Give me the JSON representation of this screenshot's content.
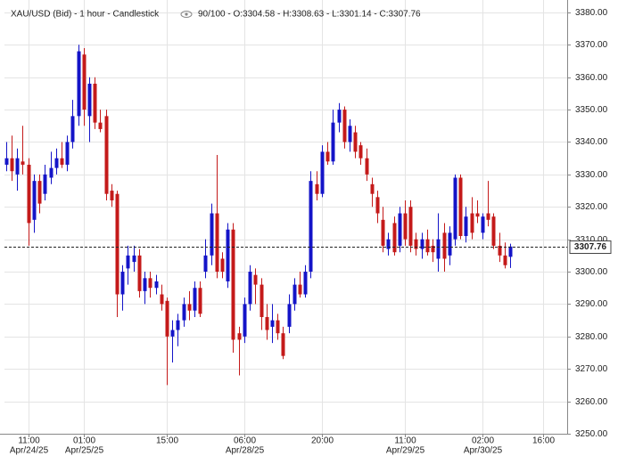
{
  "chart_data": {
    "type": "candlestick",
    "title": "XAU/USD (Bid) - 1 hour - Candlestick",
    "subtitle": "90/100 - O:3304.58 - H:3308.63 - L:3301.14 - C:3307.76",
    "up_color": "#1414c8",
    "down_color": "#c41a1a",
    "open": [
      3333,
      3335,
      3330,
      3334,
      3333,
      3316,
      3328,
      3324,
      3329,
      3332,
      3335,
      3333,
      3340,
      3348,
      3367,
      3348,
      3358,
      3346,
      3348,
      3325,
      3324,
      3293,
      3301,
      3303,
      3305,
      3294,
      3298,
      3295,
      3293,
      3291,
      3280,
      3282,
      3285,
      3290,
      3288,
      3295,
      3300,
      3305,
      3318,
      3304,
      3297,
      3313,
      3281,
      3280,
      3290,
      3299,
      3296,
      3286,
      3283,
      3285,
      3281,
      3283,
      3290,
      3296,
      3293,
      3300,
      3327,
      3324,
      3337,
      3334,
      3346,
      3350,
      3340,
      3343,
      3339,
      3335,
      3327,
      3323,
      3316,
      3307,
      3315,
      3308,
      3318,
      3320,
      3310,
      3307,
      3310,
      3308,
      3304,
      3312,
      3305,
      3310,
      3329,
      3311,
      3318,
      3318,
      3312,
      3318,
      3317,
      3308,
      3305,
      3304.58
    ],
    "high": [
      3340,
      3342,
      3338,
      3345,
      3335,
      3330,
      3330,
      3333,
      3337,
      3338,
      3340,
      3342,
      3353,
      3370,
      3369,
      3360,
      3360,
      3350,
      3350,
      3327,
      3325,
      3302,
      3308,
      3308,
      3307,
      3300,
      3300,
      3299,
      3296,
      3292,
      3285,
      3287,
      3292,
      3294,
      3297,
      3297,
      3310,
      3321,
      3336,
      3306,
      3315,
      3315,
      3283,
      3292,
      3302,
      3301,
      3298,
      3290,
      3290,
      3287,
      3283,
      3293,
      3298,
      3300,
      3302,
      3331,
      3331,
      3339,
      3340,
      3350,
      3352,
      3351,
      3347,
      3345,
      3340,
      3338,
      3329,
      3325,
      3320,
      3312,
      3317,
      3320,
      3322,
      3322,
      3312,
      3312,
      3313,
      3310,
      3318,
      3315,
      3314,
      3330,
      3330,
      3320,
      3323,
      3322,
      3318,
      3328,
      3318,
      3312,
      3309,
      3308.63
    ],
    "low": [
      3331,
      3328,
      3325,
      3330,
      3308,
      3312,
      3318,
      3322,
      3327,
      3330,
      3332,
      3331,
      3338,
      3345,
      3345,
      3340,
      3344,
      3343,
      3322,
      3320,
      3286,
      3288,
      3296,
      3300,
      3292,
      3290,
      3292,
      3293,
      3288,
      3265,
      3272,
      3277,
      3283,
      3285,
      3286,
      3286,
      3298,
      3302,
      3298,
      3298,
      3295,
      3275,
      3268,
      3278,
      3288,
      3290,
      3282,
      3279,
      3278,
      3279,
      3273,
      3281,
      3288,
      3292,
      3292,
      3298,
      3322,
      3323,
      3333,
      3333,
      3343,
      3338,
      3337,
      3335,
      3333,
      3328,
      3320,
      3315,
      3306,
      3305,
      3305,
      3306,
      3308,
      3306,
      3305,
      3304,
      3305,
      3303,
      3300,
      3300,
      3302,
      3308,
      3310,
      3309,
      3310,
      3315,
      3310,
      3314,
      3307,
      3303,
      3301,
      3301.14
    ],
    "close": [
      3335,
      3331,
      3335,
      3333,
      3315,
      3328,
      3321,
      3330,
      3332,
      3335,
      3333,
      3340,
      3348,
      3368,
      3350,
      3358,
      3346,
      3344,
      3324,
      3322,
      3293,
      3300,
      3305,
      3305,
      3294,
      3298,
      3295,
      3297,
      3290,
      3280,
      3282,
      3285,
      3290,
      3288,
      3295,
      3287,
      3305,
      3318,
      3300,
      3300,
      3313,
      3279,
      3279,
      3290,
      3300,
      3296,
      3286,
      3282,
      3285,
      3281,
      3274,
      3290,
      3296,
      3293,
      3300,
      3328,
      3324,
      3337,
      3334,
      3346,
      3350,
      3340,
      3345,
      3337,
      3335,
      3330,
      3324,
      3318,
      3308,
      3310,
      3306,
      3318,
      3310,
      3308,
      3307,
      3310,
      3306,
      3306,
      3310,
      3304,
      3312,
      3329,
      3311,
      3317,
      3312,
      3317,
      3317,
      3316,
      3308,
      3305,
      3302,
      3307.76
    ],
    "xlim": [
      -0.3,
      101.3
    ],
    "xticks": [
      {
        "value": 4,
        "label": "11:00",
        "date": "Apr/24/25"
      },
      {
        "value": 14,
        "label": "01:00",
        "date": "Apr/25/25"
      },
      {
        "value": 29,
        "label": "15:00"
      },
      {
        "value": 43,
        "label": "06:00",
        "date": "Apr/28/25"
      },
      {
        "value": 57,
        "label": "20:00"
      },
      {
        "value": 72,
        "label": "11:00",
        "date": "Apr/29/25"
      },
      {
        "value": 86,
        "label": "02:00",
        "date": "Apr/30/25"
      },
      {
        "value": 97,
        "label": "16:00"
      }
    ],
    "ylim": [
      3250,
      3382
    ],
    "yticks": [
      {
        "value": 3250,
        "label": "3250.00"
      },
      {
        "value": 3260,
        "label": "3260.00"
      },
      {
        "value": 3270,
        "label": "3270.00"
      },
      {
        "value": 3280,
        "label": "3280.00"
      },
      {
        "value": 3290,
        "label": "3290.00"
      },
      {
        "value": 3300,
        "label": "3300.00"
      },
      {
        "value": 3310,
        "label": "3310.00"
      },
      {
        "value": 3320,
        "label": "3320.00"
      },
      {
        "value": 3330,
        "label": "3330.00"
      },
      {
        "value": 3340,
        "label": "3340.00"
      },
      {
        "value": 3350,
        "label": "3350.00"
      },
      {
        "value": 3360,
        "label": "3360.00"
      },
      {
        "value": 3370,
        "label": "3370.00"
      },
      {
        "value": 3380,
        "label": "3380.00"
      }
    ],
    "grid": true
  }
}
